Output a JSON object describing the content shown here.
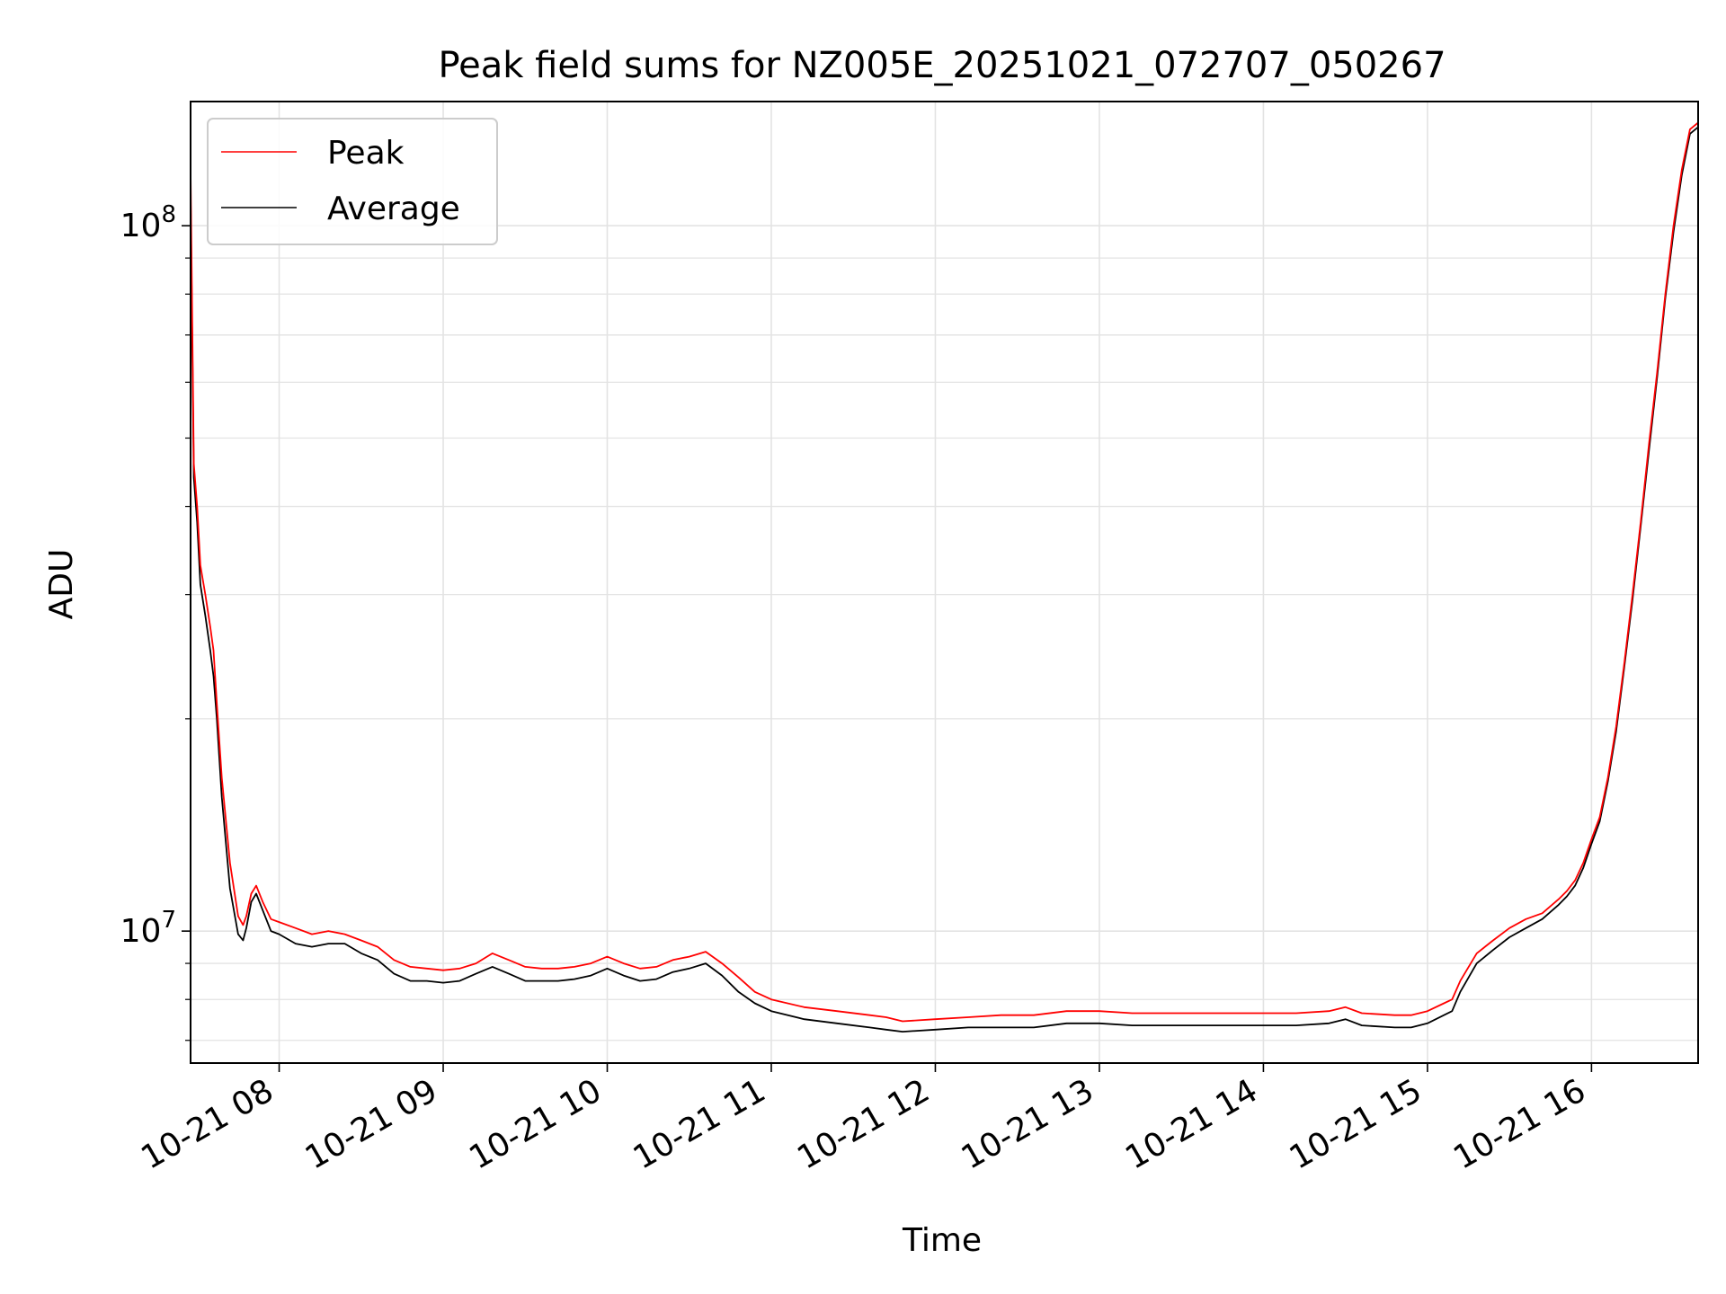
{
  "chart_data": {
    "type": "line",
    "title": "Peak field sums for NZ005E_20251021_072707_050267",
    "xlabel": "Time",
    "ylabel": "ADU",
    "yscale": "log",
    "ylim": [
      6500000,
      150000000
    ],
    "x_unit": "hours since 10-21 00:00",
    "xlim": [
      7.46,
      16.65
    ],
    "grid": true,
    "legend_position": "upper-left",
    "x_ticks": [
      {
        "value": 8,
        "label": "10-21 08"
      },
      {
        "value": 9,
        "label": "10-21 09"
      },
      {
        "value": 10,
        "label": "10-21 10"
      },
      {
        "value": 11,
        "label": "10-21 11"
      },
      {
        "value": 12,
        "label": "10-21 12"
      },
      {
        "value": 13,
        "label": "10-21 13"
      },
      {
        "value": 14,
        "label": "10-21 14"
      },
      {
        "value": 15,
        "label": "10-21 15"
      },
      {
        "value": 16,
        "label": "10-21 16"
      }
    ],
    "y_ticks": [
      {
        "value": 10000000,
        "base": "10",
        "exp": "7"
      },
      {
        "value": 100000000,
        "base": "10",
        "exp": "8"
      }
    ],
    "series": [
      {
        "name": "Peak",
        "color": "#ff0000",
        "x": [
          7.46,
          7.48,
          7.5,
          7.52,
          7.55,
          7.58,
          7.6,
          7.62,
          7.65,
          7.7,
          7.75,
          7.78,
          7.8,
          7.83,
          7.86,
          7.9,
          7.95,
          8.0,
          8.1,
          8.2,
          8.3,
          8.4,
          8.5,
          8.6,
          8.7,
          8.8,
          8.9,
          9.0,
          9.1,
          9.2,
          9.3,
          9.4,
          9.5,
          9.6,
          9.7,
          9.8,
          9.9,
          10.0,
          10.1,
          10.2,
          10.3,
          10.4,
          10.5,
          10.6,
          10.7,
          10.8,
          10.9,
          11.0,
          11.2,
          11.4,
          11.6,
          11.7,
          11.8,
          12.0,
          12.2,
          12.4,
          12.6,
          12.8,
          13.0,
          13.2,
          13.4,
          13.6,
          13.8,
          14.0,
          14.2,
          14.4,
          14.5,
          14.6,
          14.8,
          14.9,
          15.0,
          15.1,
          15.15,
          15.2,
          15.3,
          15.4,
          15.5,
          15.6,
          15.7,
          15.8,
          15.85,
          15.9,
          15.95,
          16.0,
          16.05,
          16.1,
          16.15,
          16.2,
          16.25,
          16.3,
          16.35,
          16.4,
          16.45,
          16.5,
          16.55,
          16.6,
          16.65
        ],
        "y": [
          120000000,
          46000000,
          40000000,
          33000000,
          30000000,
          27000000,
          25000000,
          21000000,
          16500000,
          12500000,
          10500000,
          10200000,
          10500000,
          11300000,
          11600000,
          11000000,
          10400000,
          10300000,
          10100000,
          9900000,
          10000000,
          9900000,
          9700000,
          9500000,
          9100000,
          8900000,
          8850000,
          8800000,
          8850000,
          9000000,
          9300000,
          9100000,
          8900000,
          8850000,
          8850000,
          8900000,
          9000000,
          9200000,
          9000000,
          8850000,
          8900000,
          9100000,
          9200000,
          9350000,
          9000000,
          8600000,
          8200000,
          8000000,
          7800000,
          7700000,
          7600000,
          7550000,
          7450000,
          7500000,
          7550000,
          7600000,
          7600000,
          7700000,
          7700000,
          7650000,
          7650000,
          7650000,
          7650000,
          7650000,
          7650000,
          7700000,
          7800000,
          7650000,
          7600000,
          7600000,
          7700000,
          7900000,
          8000000,
          8500000,
          9300000,
          9700000,
          10100000,
          10400000,
          10600000,
          11100000,
          11400000,
          11800000,
          12500000,
          13500000,
          14500000,
          16500000,
          19500000,
          24000000,
          30000000,
          38000000,
          49000000,
          62000000,
          80000000,
          100000000,
          120000000,
          137000000,
          140000000
        ]
      },
      {
        "name": "Average",
        "color": "#000000",
        "x": [
          7.46,
          7.48,
          7.5,
          7.52,
          7.55,
          7.58,
          7.6,
          7.62,
          7.65,
          7.7,
          7.75,
          7.78,
          7.8,
          7.83,
          7.86,
          7.9,
          7.95,
          8.0,
          8.1,
          8.2,
          8.3,
          8.4,
          8.5,
          8.6,
          8.7,
          8.8,
          8.9,
          9.0,
          9.1,
          9.2,
          9.3,
          9.4,
          9.5,
          9.6,
          9.7,
          9.8,
          9.9,
          10.0,
          10.1,
          10.2,
          10.3,
          10.4,
          10.5,
          10.6,
          10.7,
          10.8,
          10.9,
          11.0,
          11.2,
          11.4,
          11.6,
          11.7,
          11.8,
          12.0,
          12.2,
          12.4,
          12.6,
          12.8,
          13.0,
          13.2,
          13.4,
          13.6,
          13.8,
          14.0,
          14.2,
          14.4,
          14.5,
          14.6,
          14.8,
          14.9,
          15.0,
          15.1,
          15.15,
          15.2,
          15.3,
          15.4,
          15.5,
          15.6,
          15.7,
          15.8,
          15.85,
          15.9,
          15.95,
          16.0,
          16.05,
          16.1,
          16.15,
          16.2,
          16.25,
          16.3,
          16.35,
          16.4,
          16.45,
          16.5,
          16.55,
          16.6,
          16.65
        ],
        "y": [
          110000000,
          44000000,
          38000000,
          31000000,
          28000000,
          25000000,
          23000000,
          20000000,
          15500000,
          11500000,
          9900000,
          9700000,
          10100000,
          11000000,
          11300000,
          10700000,
          10000000,
          9900000,
          9600000,
          9500000,
          9600000,
          9600000,
          9300000,
          9100000,
          8700000,
          8500000,
          8500000,
          8450000,
          8500000,
          8700000,
          8900000,
          8700000,
          8500000,
          8500000,
          8500000,
          8550000,
          8650000,
          8850000,
          8650000,
          8500000,
          8550000,
          8750000,
          8850000,
          9000000,
          8650000,
          8200000,
          7900000,
          7700000,
          7500000,
          7400000,
          7300000,
          7250000,
          7200000,
          7250000,
          7300000,
          7300000,
          7300000,
          7400000,
          7400000,
          7350000,
          7350000,
          7350000,
          7350000,
          7350000,
          7350000,
          7400000,
          7500000,
          7350000,
          7300000,
          7300000,
          7400000,
          7600000,
          7700000,
          8200000,
          9000000,
          9400000,
          9800000,
          10100000,
          10400000,
          10900000,
          11200000,
          11600000,
          12300000,
          13300000,
          14300000,
          16300000,
          19200000,
          23700000,
          29500000,
          37500000,
          48000000,
          61000000,
          79000000,
          98000000,
          118000000,
          135000000,
          138000000
        ]
      }
    ]
  }
}
